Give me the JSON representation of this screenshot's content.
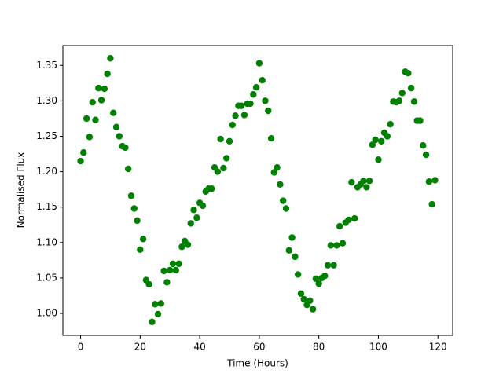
{
  "chart_data": {
    "type": "scatter",
    "x_label": "Time (Hours)",
    "y_label": "Normalised Flux",
    "color": "#008000",
    "x": [
      0,
      1,
      2,
      3,
      4,
      5,
      6,
      7,
      8,
      9,
      10,
      11,
      12,
      13,
      14,
      15,
      16,
      17,
      18,
      19,
      20,
      21,
      22,
      23,
      24,
      25,
      26,
      27,
      28,
      29,
      30,
      31,
      32,
      33,
      34,
      35,
      36,
      37,
      38,
      39,
      40,
      41,
      42,
      43,
      44,
      45,
      46,
      47,
      48,
      49,
      50,
      51,
      52,
      53,
      54,
      55,
      56,
      57,
      58,
      59,
      60,
      61,
      62,
      63,
      64,
      65,
      66,
      67,
      68,
      69,
      70,
      71,
      72,
      73,
      74,
      75,
      76,
      77,
      78,
      79,
      80,
      81,
      82,
      83,
      84,
      85,
      86,
      87,
      88,
      89,
      90,
      91,
      92,
      93,
      94,
      95,
      96,
      97,
      98,
      99,
      100,
      101,
      102,
      103,
      104,
      105,
      106,
      107,
      108,
      109,
      110,
      111,
      112,
      113,
      114,
      115,
      116,
      117,
      118,
      119
    ],
    "values": [
      1.215,
      1.227,
      1.275,
      1.249,
      1.298,
      1.273,
      1.318,
      1.301,
      1.317,
      1.338,
      1.36,
      1.283,
      1.263,
      1.25,
      1.236,
      1.234,
      1.204,
      1.166,
      1.148,
      1.131,
      1.09,
      1.105,
      1.047,
      1.041,
      0.988,
      1.013,
      0.999,
      1.014,
      1.06,
      1.044,
      1.061,
      1.07,
      1.061,
      1.07,
      1.094,
      1.102,
      1.097,
      1.127,
      1.146,
      1.135,
      1.156,
      1.152,
      1.172,
      1.176,
      1.176,
      1.206,
      1.2,
      1.246,
      1.205,
      1.219,
      1.243,
      1.266,
      1.279,
      1.293,
      1.293,
      1.28,
      1.296,
      1.296,
      1.309,
      1.319,
      1.353,
      1.329,
      1.3,
      1.286,
      1.247,
      1.199,
      1.206,
      1.182,
      1.159,
      1.148,
      1.089,
      1.107,
      1.08,
      1.055,
      1.028,
      1.02,
      1.012,
      1.018,
      1.006,
      1.049,
      1.042,
      1.05,
      1.053,
      1.068,
      1.096,
      1.068,
      1.096,
      1.123,
      1.099,
      1.128,
      1.132,
      1.185,
      1.134,
      1.178,
      1.182,
      1.187,
      1.178,
      1.187,
      1.238,
      1.245,
      1.217,
      1.243,
      1.255,
      1.25,
      1.267,
      1.299,
      1.298,
      1.3,
      1.311,
      1.341,
      1.339,
      1.318,
      1.299,
      1.272,
      1.272,
      1.237,
      1.224,
      1.186,
      1.154,
      1.188
    ],
    "xlim": [
      -5.95,
      124.95
    ],
    "xticks": [
      0,
      20,
      40,
      60,
      80,
      100,
      120
    ],
    "ylim": [
      0.969,
      1.378
    ],
    "yticks": [
      {
        "value": 1.0,
        "label": "1.00"
      },
      1.05,
      {
        "value": 1.1,
        "label": "1.10"
      },
      1.15,
      {
        "value": 1.2,
        "label": "1.20"
      },
      1.25,
      {
        "value": 1.3,
        "label": "1.30"
      },
      1.35
    ]
  }
}
